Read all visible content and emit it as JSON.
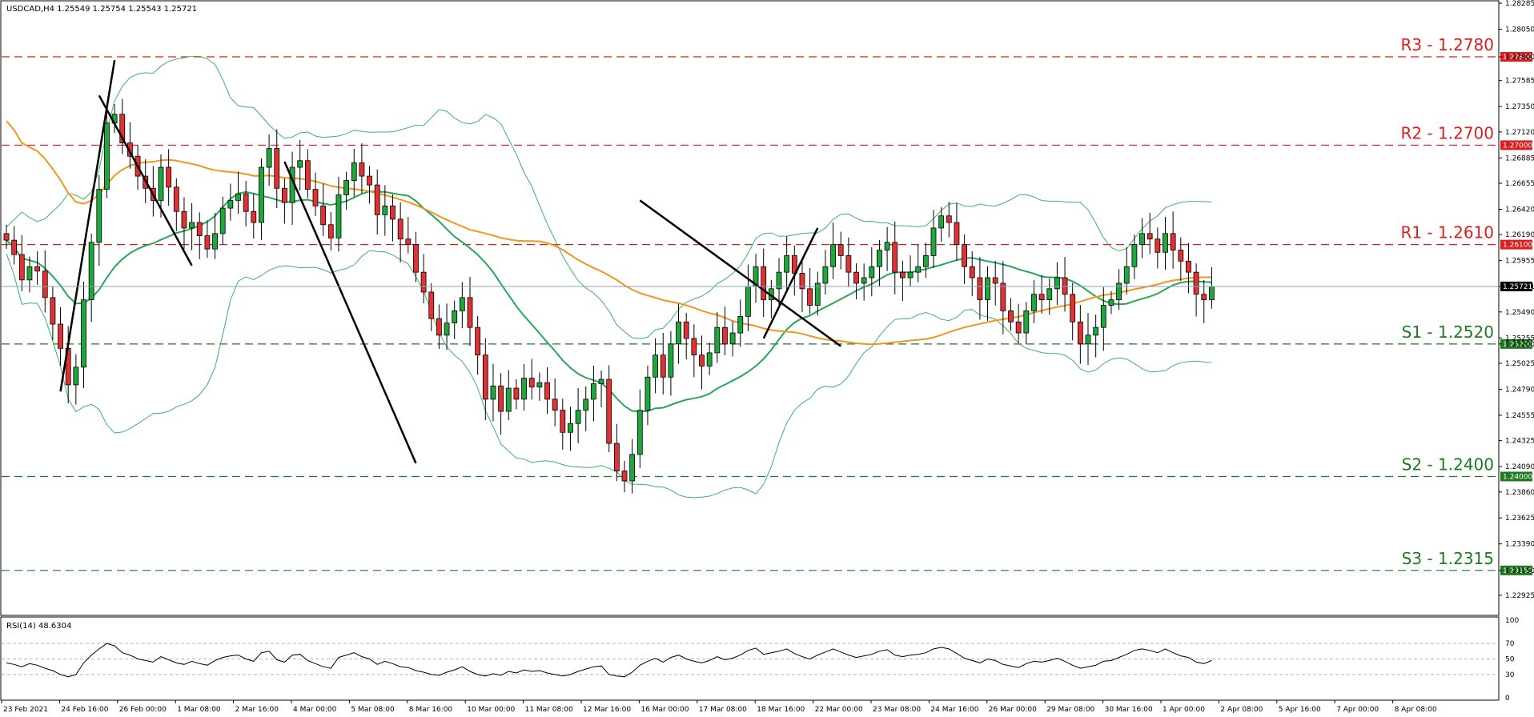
{
  "header": {
    "symbol_info": "USDCAD,H4  1.25549 1.25754 1.25543 1.25721",
    "rsi_info": "RSI(14) 48.6304"
  },
  "chart_data": {
    "type": "candlestick",
    "symbol": "USDCAD",
    "timeframe": "H4",
    "ohlc_last": {
      "open": 1.25549,
      "high": 1.25754,
      "low": 1.25543,
      "close": 1.25721
    },
    "current_price_label": "1.25721",
    "ylim": [
      1.2275,
      1.283
    ],
    "y_ticks": [
      "1.28285",
      "1.28050",
      "1.27800",
      "1.27585",
      "1.27350",
      "1.27120",
      "1.26885",
      "1.26655",
      "1.26420",
      "1.26190",
      "1.25955",
      "1.25721",
      "1.25490",
      "1.25255",
      "1.25200",
      "1.25025",
      "1.24790",
      "1.24555",
      "1.24325",
      "1.24090",
      "1.23860",
      "1.23625",
      "1.23390",
      "1.23150",
      "1.22925"
    ],
    "x_ticks": [
      "23 Feb 2021",
      "24 Feb 16:00",
      "26 Feb 00:00",
      "1 Mar 08:00",
      "2 Mar 16:00",
      "4 Mar 00:00",
      "5 Mar 08:00",
      "8 Mar 16:00",
      "10 Mar 00:00",
      "11 Mar 08:00",
      "12 Mar 16:00",
      "16 Mar 00:00",
      "17 Mar 08:00",
      "18 Mar 16:00",
      "22 Mar 00:00",
      "23 Mar 08:00",
      "24 Mar 16:00",
      "26 Mar 00:00",
      "29 Mar 08:00",
      "30 Mar 16:00",
      "1 Apr 00:00",
      "2 Apr 08:00",
      "5 Apr 16:00",
      "7 Apr 00:00",
      "8 Apr 08:00"
    ],
    "levels": [
      {
        "name": "R3 - 1.2780",
        "value": 1.278,
        "tag": "1.27800",
        "color": "#dc1e1e"
      },
      {
        "name": "R2 - 1.2700",
        "value": 1.27,
        "tag": "1.27000",
        "color": "#dc1e1e"
      },
      {
        "name": "R1 - 1.2610",
        "value": 1.261,
        "tag": "1.26100",
        "color": "#dc1e1e"
      },
      {
        "name": "S1 - 1.2520",
        "value": 1.252,
        "tag": "1.25200",
        "color": "#1e7a1e"
      },
      {
        "name": "S2 - 1.2400",
        "value": 1.24,
        "tag": "1.24000",
        "color": "#1e7a1e"
      },
      {
        "name": "S3 - 1.2315",
        "value": 1.2315,
        "tag": "1.23150",
        "color": "#1e7a1e"
      }
    ],
    "trendlines": [
      {
        "from": [
          7,
          1.2477
        ],
        "to": [
          14,
          1.2777
        ]
      },
      {
        "from": [
          12,
          1.2745
        ],
        "to": [
          24,
          1.2591
        ]
      },
      {
        "from": [
          36,
          1.2685
        ],
        "to": [
          53,
          1.2412
        ]
      },
      {
        "from": [
          82,
          1.265
        ],
        "to": [
          108,
          1.2518
        ]
      },
      {
        "from": [
          98,
          1.2525
        ],
        "to": [
          105,
          1.2625
        ]
      }
    ],
    "candles_close": [
      1.2614,
      1.2601,
      1.2578,
      1.259,
      1.2586,
      1.2562,
      1.2538,
      1.2516,
      1.2483,
      1.2499,
      1.256,
      1.2612,
      1.266,
      1.272,
      1.2728,
      1.2702,
      1.269,
      1.2672,
      1.2661,
      1.265,
      1.268,
      1.2662,
      1.264,
      1.2625,
      1.263,
      1.2618,
      1.2606,
      1.262,
      1.2643,
      1.265,
      1.2656,
      1.264,
      1.263,
      1.268,
      1.2697,
      1.2661,
      1.2648,
      1.268,
      1.2686,
      1.266,
      1.2645,
      1.2628,
      1.2616,
      1.2655,
      1.2668,
      1.2684,
      1.2672,
      1.2664,
      1.2637,
      1.2645,
      1.2633,
      1.2615,
      1.261,
      1.2585,
      1.2567,
      1.2543,
      1.2528,
      1.2539,
      1.255,
      1.2562,
      1.2535,
      1.251,
      1.247,
      1.2482,
      1.2459,
      1.248,
      1.247,
      1.2489,
      1.2481,
      1.2485,
      1.247,
      1.246,
      1.244,
      1.2448,
      1.246,
      1.247,
      1.2484,
      1.2488,
      1.243,
      1.2405,
      1.2396,
      1.242,
      1.246,
      1.249,
      1.251,
      1.249,
      1.252,
      1.254,
      1.2525,
      1.251,
      1.25,
      1.2512,
      1.2535,
      1.252,
      1.253,
      1.2545,
      1.2572,
      1.259,
      1.256,
      1.257,
      1.2585,
      1.26,
      1.2584,
      1.257,
      1.2555,
      1.2575,
      1.259,
      1.261,
      1.26,
      1.2585,
      1.2575,
      1.258,
      1.259,
      1.2605,
      1.2612,
      1.2585,
      1.258,
      1.2585,
      1.259,
      1.26,
      1.2625,
      1.2636,
      1.263,
      1.261,
      1.259,
      1.258,
      1.256,
      1.258,
      1.2575,
      1.255,
      1.254,
      1.253,
      1.255,
      1.2565,
      1.256,
      1.257,
      1.258,
      1.2565,
      1.254,
      1.252,
      1.2528,
      1.2535,
      1.2555,
      1.256,
      1.2575,
      1.259,
      1.261,
      1.262,
      1.2615,
      1.2603,
      1.262,
      1.2605,
      1.2595,
      1.2585,
      1.2565,
      1.256,
      1.2572
    ],
    "rsi": {
      "label": "RSI(14) 48.6304",
      "ylim": [
        0,
        100
      ],
      "ticks": [
        "100",
        "70",
        "50",
        "30",
        "0"
      ],
      "values": [
        45,
        43,
        40,
        44,
        42,
        38,
        35,
        30,
        27,
        30,
        45,
        55,
        63,
        70,
        67,
        58,
        55,
        50,
        48,
        46,
        53,
        49,
        45,
        43,
        47,
        44,
        42,
        48,
        52,
        54,
        55,
        50,
        47,
        58,
        60,
        49,
        46,
        55,
        56,
        48,
        44,
        40,
        38,
        52,
        55,
        58,
        53,
        50,
        43,
        47,
        44,
        40,
        39,
        35,
        33,
        30,
        29,
        33,
        36,
        40,
        34,
        30,
        28,
        31,
        29,
        34,
        32,
        36,
        34,
        35,
        32,
        30,
        28,
        30,
        34,
        37,
        40,
        41,
        30,
        28,
        27,
        33,
        42,
        47,
        51,
        46,
        52,
        55,
        50,
        47,
        45,
        48,
        53,
        49,
        51,
        55,
        61,
        64,
        56,
        58,
        60,
        63,
        57,
        53,
        50,
        55,
        59,
        63,
        59,
        55,
        52,
        54,
        56,
        60,
        62,
        55,
        53,
        55,
        56,
        58,
        63,
        65,
        63,
        57,
        51,
        48,
        45,
        50,
        48,
        43,
        41,
        39,
        44,
        47,
        46,
        48,
        51,
        47,
        42,
        38,
        40,
        42,
        47,
        48,
        52,
        56,
        61,
        63,
        61,
        58,
        63,
        58,
        54,
        52,
        46,
        44,
        48
      ]
    }
  }
}
